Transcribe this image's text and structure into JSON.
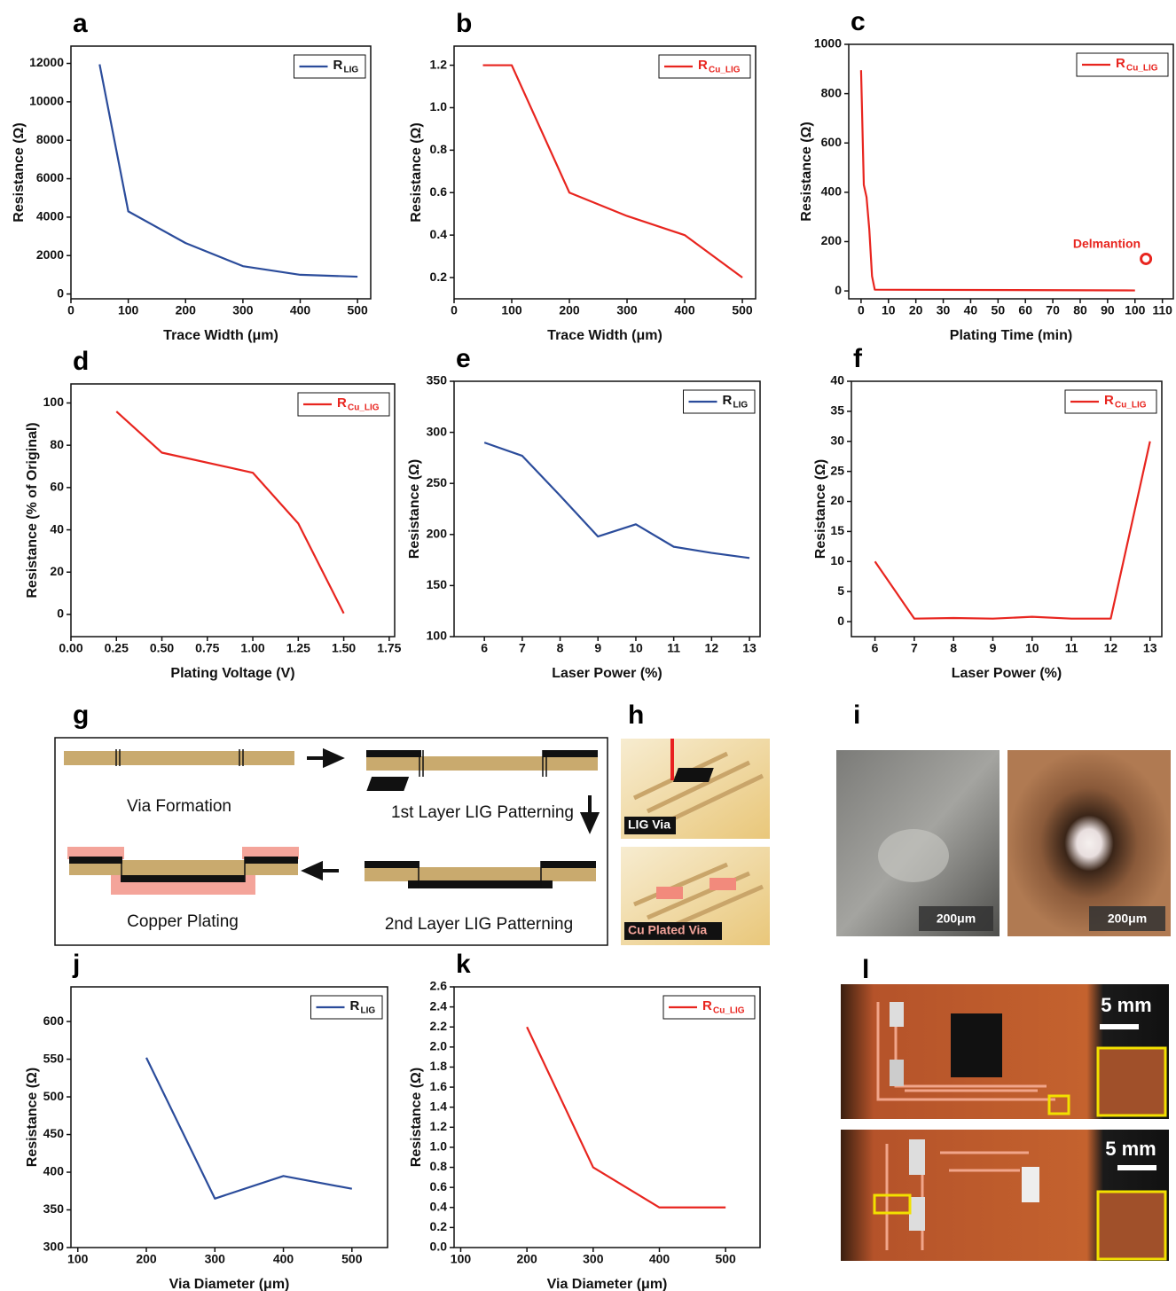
{
  "chart_data": [
    {
      "type": "line",
      "panel": "a",
      "xlabel": "Trace Width (μm)",
      "ylabel": "Resistance (Ω)",
      "x": [
        50,
        100,
        200,
        300,
        400,
        500
      ],
      "series": [
        {
          "name": "R",
          "subscript": "LIG",
          "color": "#2b4c9b",
          "values": [
            11950,
            4300,
            2650,
            1450,
            1000,
            900
          ]
        }
      ],
      "xlim": [
        0,
        523
      ],
      "xticks": [
        0,
        100,
        200,
        300,
        400,
        500
      ],
      "ylim": [
        -250,
        12900
      ],
      "yticks": [
        0,
        2000,
        4000,
        6000,
        8000,
        10000,
        12000
      ],
      "legend": "upper-right"
    },
    {
      "type": "line",
      "panel": "b",
      "xlabel": "Trace Width (μm)",
      "ylabel": "Resistance (Ω)",
      "x": [
        50,
        100,
        200,
        300,
        400,
        500
      ],
      "series": [
        {
          "name": "R",
          "subscript": "Cu_LIG",
          "color": "#e8251f",
          "values": [
            1.2,
            1.2,
            0.6,
            0.49,
            0.4,
            0.2
          ]
        }
      ],
      "xlim": [
        0,
        523
      ],
      "xticks": [
        0,
        100,
        200,
        300,
        400,
        500
      ],
      "ylim": [
        0.1,
        1.29
      ],
      "yticks": [
        0.2,
        0.4,
        0.6,
        0.8,
        {
          "value": 1.0,
          "label": "1.0"
        },
        1.2
      ],
      "legend": "upper-right"
    },
    {
      "type": "line",
      "panel": "c",
      "xlabel": "Plating Time (min)",
      "ylabel": "Resistance (Ω)",
      "x": [
        0,
        1,
        2,
        3,
        4,
        5,
        100
      ],
      "series": [
        {
          "name": "R",
          "subscript": "Cu_LIG",
          "color": "#e8251f",
          "values": [
            895,
            430,
            380,
            250,
            60,
            5,
            2
          ]
        }
      ],
      "annotations": [
        {
          "text": "Delmantion",
          "x": 104,
          "y": 130,
          "color": "#e8251f"
        }
      ],
      "xlim": [
        -4.5,
        114
      ],
      "xticks": [
        0,
        10,
        20,
        30,
        40,
        50,
        60,
        70,
        80,
        90,
        100,
        110
      ],
      "ylim": [
        -32,
        1000
      ],
      "yticks": [
        0,
        200,
        400,
        600,
        800,
        1000
      ],
      "legend": "upper-right"
    },
    {
      "type": "line",
      "panel": "d",
      "xlabel": "Plating Voltage (V)",
      "ylabel": "Resistance (% of Original)",
      "x": [
        0.25,
        0.5,
        1.0,
        1.25,
        1.5
      ],
      "series": [
        {
          "name": "R",
          "subscript": "Cu_LIG",
          "color": "#e8251f",
          "values": [
            96,
            76.5,
            67,
            43,
            0.5
          ]
        }
      ],
      "xlim": [
        0,
        1.78
      ],
      "xticks": [
        {
          "value": 0,
          "label": "0.00"
        },
        0.25,
        {
          "value": 0.5,
          "label": "0.50"
        },
        0.75,
        {
          "value": 1.0,
          "label": "1.00"
        },
        1.25,
        {
          "value": 1.5,
          "label": "1.50"
        },
        1.75
      ],
      "ylim": [
        -10.5,
        109
      ],
      "yticks": [
        0,
        20,
        40,
        60,
        80,
        100
      ],
      "legend": "upper-right"
    },
    {
      "type": "line",
      "panel": "e",
      "xlabel": "Laser Power (%)",
      "ylabel": "Resistance (Ω)",
      "x": [
        6,
        7,
        8,
        9,
        10,
        11,
        12,
        13
      ],
      "series": [
        {
          "name": "R",
          "subscript": "LIG",
          "color": "#2b4c9b",
          "values": [
            290,
            277,
            238,
            198,
            210,
            188,
            182,
            177
          ]
        }
      ],
      "xlim": [
        5.2,
        13.28
      ],
      "xticks": [
        6,
        7,
        8,
        9,
        10,
        11,
        12,
        13
      ],
      "ylim": [
        100,
        350
      ],
      "yticks": [
        100,
        150,
        200,
        250,
        300,
        350
      ],
      "legend": "upper-right"
    },
    {
      "type": "line",
      "panel": "f",
      "xlabel": "Laser Power (%)",
      "ylabel": "Resistance (Ω)",
      "x": [
        6,
        7,
        8,
        9,
        10,
        11,
        12,
        13
      ],
      "series": [
        {
          "name": "R",
          "subscript": "Cu_LIG",
          "color": "#e8251f",
          "values": [
            10,
            0.5,
            0.6,
            0.5,
            0.8,
            0.5,
            0.5,
            30
          ]
        }
      ],
      "xlim": [
        5.4,
        13.3
      ],
      "xticks": [
        6,
        7,
        8,
        9,
        10,
        11,
        12,
        13
      ],
      "ylim": [
        -2.5,
        40
      ],
      "yticks": [
        0,
        5,
        10,
        15,
        20,
        25,
        30,
        35,
        40
      ],
      "legend": "upper-right"
    },
    {
      "type": "line",
      "panel": "j",
      "xlabel": "Via Diameter (μm)",
      "ylabel": "Resistance (Ω)",
      "x": [
        200,
        300,
        400,
        500
      ],
      "series": [
        {
          "name": "R",
          "subscript": "LIG",
          "color": "#2b4c9b",
          "values": [
            552,
            365,
            395,
            378
          ]
        }
      ],
      "xlim": [
        90,
        552
      ],
      "xticks": [
        100,
        200,
        300,
        400,
        500
      ],
      "ylim": [
        300,
        646
      ],
      "yticks": [
        300,
        350,
        400,
        450,
        500,
        550,
        600
      ],
      "legend": "upper-right"
    },
    {
      "type": "line",
      "panel": "k",
      "xlabel": "Via Diameter (μm)",
      "ylabel": "Resistance (Ω)",
      "x": [
        200,
        300,
        400,
        500
      ],
      "series": [
        {
          "name": "R",
          "subscript": "Cu_LIG",
          "color": "#e8251f",
          "values": [
            2.2,
            0.8,
            0.4,
            0.4
          ]
        }
      ],
      "xlim": [
        90,
        552
      ],
      "xticks": [
        100,
        200,
        300,
        400,
        500
      ],
      "ylim": [
        0,
        2.6
      ],
      "yticks": [
        {
          "value": 0,
          "label": "0.0"
        },
        0.2,
        0.4,
        0.6,
        0.8,
        {
          "value": 1.0,
          "label": "1.0"
        },
        1.2,
        1.4,
        1.6,
        1.8,
        {
          "value": 2.0,
          "label": "2.0"
        },
        2.2,
        2.4,
        2.6
      ],
      "legend": "upper-right"
    }
  ],
  "figure": {
    "g": {
      "label": "g",
      "steps": [
        "Via Formation",
        "1st Layer LIG Patterning",
        "Copper Plating",
        "2nd Layer LIG Patterning"
      ]
    },
    "h": {
      "label": "h",
      "captions": [
        "LIG Via",
        "Cu Plated Via"
      ]
    },
    "i": {
      "label": "i",
      "scale_bars": [
        "200μm",
        "200μm"
      ]
    },
    "l": {
      "label": "l",
      "scale_bars": [
        "5 mm",
        "5 mm"
      ]
    }
  }
}
